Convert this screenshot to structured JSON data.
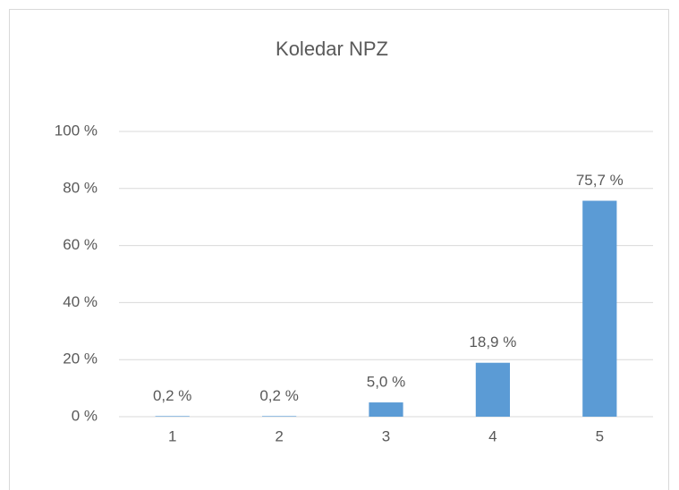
{
  "chart_data": {
    "type": "bar",
    "title": "Koledar NPZ",
    "categories": [
      "1",
      "2",
      "3",
      "4",
      "5"
    ],
    "values": [
      0.2,
      0.2,
      5.0,
      18.9,
      75.7
    ],
    "value_labels": [
      "0,2 %",
      "0,2 %",
      "5,0 %",
      "18,9 %",
      "75,7 %"
    ],
    "color": "#5b9bd5",
    "ylim": [
      0,
      100
    ],
    "yticks": [
      {
        "value": 0,
        "label": "0 %"
      },
      {
        "value": 20,
        "label": "20 %"
      },
      {
        "value": 40,
        "label": "40 %"
      },
      {
        "value": 60,
        "label": "60 %"
      },
      {
        "value": 80,
        "label": "80 %"
      },
      {
        "value": 100,
        "label": "100 %"
      }
    ],
    "grid": true
  }
}
